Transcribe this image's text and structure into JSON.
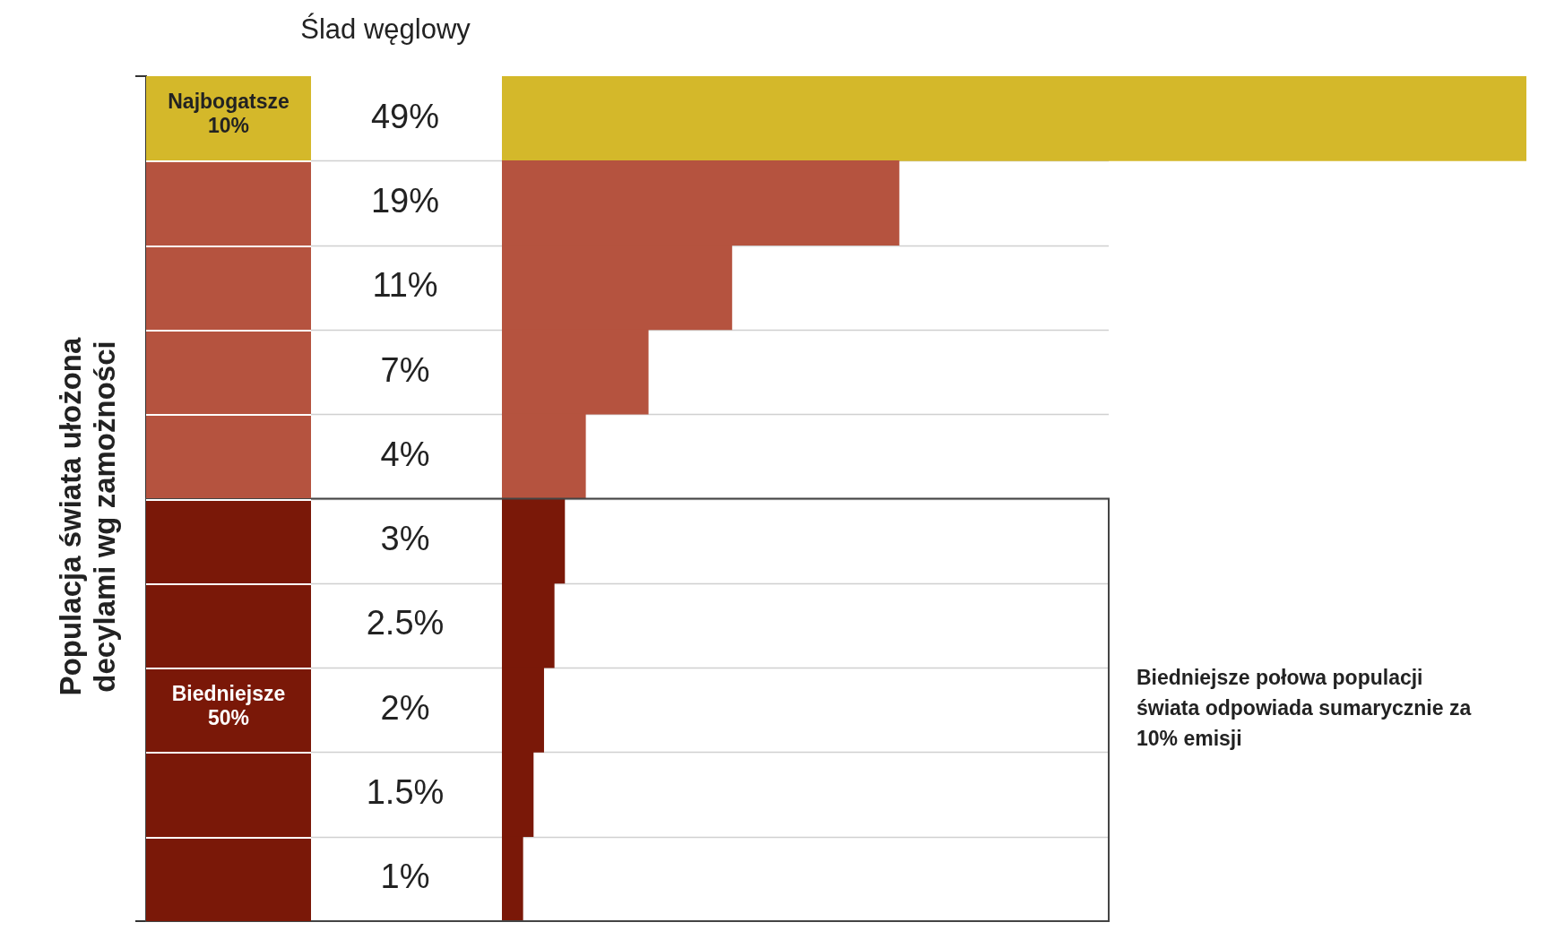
{
  "chart_data": {
    "type": "bar",
    "orientation": "horizontal",
    "title": "Ślad węglowy",
    "ylabel": "Populacja świata ułożona decylami wg zamożności",
    "categories": [
      "Najbogatsze 10%",
      null,
      null,
      null,
      null,
      null,
      null,
      "Biedniejsze 50%",
      null,
      null
    ],
    "values": [
      49,
      19,
      11,
      7,
      4,
      3,
      2.5,
      2,
      1.5,
      1
    ],
    "value_labels": [
      "49%",
      "19%",
      "11%",
      "7%",
      "4%",
      "3%",
      "2.5%",
      "2%",
      "1.5%",
      "1%"
    ],
    "colors": [
      "#d4b82a",
      "#b5533f",
      "#b5533f",
      "#b5533f",
      "#b5533f",
      "#7a1808",
      "#7a1808",
      "#7a1808",
      "#7a1808",
      "#7a1808"
    ],
    "grid": "y",
    "annotations": [
      "Biedniejsze połowa populacji świata odpowiada sumarycznie za 10% emisji"
    ]
  }
}
